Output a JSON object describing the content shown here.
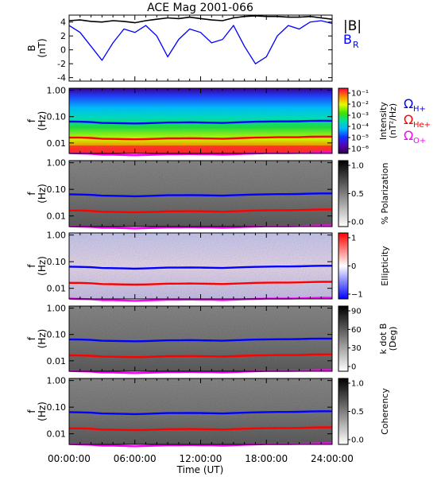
{
  "chart_data": {
    "title": "ACE Mag 2001-066",
    "type": "multi-panel",
    "xlabel": "Time (UT)",
    "x_ticks": [
      "00:00:00",
      "06:00:00",
      "12:00:00",
      "18:00:00",
      "24:00:00"
    ],
    "x_range_hours": [
      0,
      24
    ],
    "legend_b": {
      "total": "|B|",
      "radial": "B",
      "radial_sub": "R"
    },
    "legend_gyro": [
      {
        "sym": "Ω",
        "sub": "H+",
        "color": "#0000ff"
      },
      {
        "sym": "Ω",
        "sub": "He+",
        "color": "#ff0000"
      },
      {
        "sym": "Ω",
        "sub": "O+",
        "color": "#ff00ff"
      }
    ],
    "colors": {
      "total_field": "#000000",
      "radial_field": "#0000ff",
      "h_plus": "#0000ff",
      "he_plus": "#ff0000",
      "o_plus": "#ff00ff"
    },
    "panels": [
      {
        "kind": "line",
        "ylabel_top": "B",
        "ylabel_bottom": "(nT)",
        "ylim": [
          -4.5,
          5
        ],
        "y_ticks": [
          "4",
          "2",
          "0",
          "-2",
          "-4"
        ],
        "series": [
          {
            "key": "total",
            "values": [
              4.2,
              4.3,
              4.1,
              4.0,
              4.2,
              4.1,
              3.9,
              4.2,
              4.4,
              4.6,
              4.5,
              4.7,
              4.5,
              4.3,
              4.2,
              4.6,
              4.8,
              4.9,
              4.8,
              4.8,
              4.7,
              4.7,
              4.8,
              4.6,
              4.4
            ]
          },
          {
            "key": "radial",
            "values": [
              3.5,
              2.5,
              0.5,
              -1.5,
              1.0,
              3.0,
              2.5,
              3.5,
              2.0,
              -1.0,
              1.5,
              3.0,
              2.5,
              1.0,
              1.5,
              3.5,
              0.5,
              -2.0,
              -1.0,
              2.0,
              3.5,
              3.0,
              4.0,
              4.2,
              3.8
            ]
          }
        ]
      },
      {
        "kind": "spectrogram",
        "scheme": "rainbow",
        "ylabel_top": "f",
        "ylabel_bottom": "(Hz)",
        "ylim_log": [
          0.004,
          1.2
        ],
        "y_ticks": [
          "1.00",
          "0.10",
          "0.01"
        ],
        "colorbar_label": "Intensity",
        "colorbar_unit": "(nT²/Hz)",
        "colorbar_ticks": [
          "10⁻¹",
          "10⁻²",
          "10⁻³",
          "10⁻⁴",
          "10⁻⁵",
          "10⁻⁶"
        ]
      },
      {
        "kind": "spectrogram",
        "scheme": "gray",
        "ylabel_top": "f",
        "ylabel_bottom": "(Hz)",
        "ylim_log": [
          0.004,
          1.2
        ],
        "y_ticks": [
          "1.00",
          "0.10",
          "0.01"
        ],
        "colorbar_label": "% Polarization",
        "colorbar_unit": "",
        "colorbar_ticks": [
          "1.0",
          "0.5",
          "0.0"
        ]
      },
      {
        "kind": "spectrogram",
        "scheme": "bwr",
        "ylabel_top": "f",
        "ylabel_bottom": "(Hz)",
        "ylim_log": [
          0.004,
          1.2
        ],
        "y_ticks": [
          "1.00",
          "0.10",
          "0.01"
        ],
        "colorbar_label": "Ellipticity",
        "colorbar_unit": "",
        "colorbar_ticks": [
          "1",
          "0",
          "−1"
        ]
      },
      {
        "kind": "spectrogram",
        "scheme": "gray",
        "ylabel_top": "f",
        "ylabel_bottom": "(Hz)",
        "ylim_log": [
          0.004,
          1.2
        ],
        "y_ticks": [
          "1.00",
          "0.10",
          "0.01"
        ],
        "colorbar_label": "k dot B",
        "colorbar_unit": "(Deg)",
        "colorbar_ticks": [
          "90",
          "60",
          "30",
          "0"
        ]
      },
      {
        "kind": "spectrogram",
        "scheme": "gray",
        "ylabel_top": "f",
        "ylabel_bottom": "(Hz)",
        "ylim_log": [
          0.004,
          1.2
        ],
        "y_ticks": [
          "1.00",
          "0.10",
          "0.01"
        ],
        "colorbar_label": "Coherency",
        "colorbar_unit": "",
        "colorbar_ticks": [
          "1.0",
          "0.5",
          "0.0"
        ]
      }
    ],
    "gyrofrequency_hz": {
      "h_plus": [
        0.065,
        0.064,
        0.062,
        0.058,
        0.057,
        0.056,
        0.055,
        0.056,
        0.058,
        0.06,
        0.06,
        0.061,
        0.06,
        0.059,
        0.058,
        0.06,
        0.062,
        0.064,
        0.065,
        0.066,
        0.066,
        0.067,
        0.069,
        0.07,
        0.07
      ],
      "he_plus": [
        0.016,
        0.016,
        0.0155,
        0.0145,
        0.0143,
        0.014,
        0.0138,
        0.014,
        0.0145,
        0.015,
        0.015,
        0.0152,
        0.015,
        0.0148,
        0.0145,
        0.015,
        0.0155,
        0.016,
        0.0162,
        0.0165,
        0.0165,
        0.0167,
        0.0172,
        0.0175,
        0.0175
      ],
      "o_plus": [
        0.0041,
        0.004,
        0.0039,
        0.0036,
        0.0036,
        0.0035,
        0.0034,
        0.0035,
        0.0036,
        0.0037,
        0.0037,
        0.0038,
        0.0037,
        0.0037,
        0.0036,
        0.0037,
        0.0039,
        0.004,
        0.0041,
        0.0041,
        0.0041,
        0.0042,
        0.0043,
        0.0044,
        0.0044
      ]
    }
  }
}
